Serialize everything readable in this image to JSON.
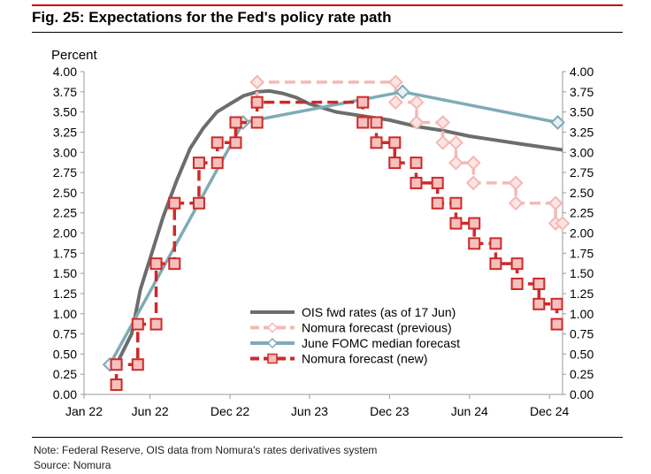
{
  "title": "Fig. 25: Expectations for the Fed's policy rate path",
  "note": "Note: Federal Reserve, OIS data from Nomura's rates derivatives system",
  "source": "Source: Nomura",
  "chart_data": {
    "type": "line",
    "ylabel": "Percent",
    "ylim": [
      0,
      4
    ],
    "yticks": [
      "0.00",
      "0.25",
      "0.50",
      "0.75",
      "1.00",
      "1.25",
      "1.50",
      "1.75",
      "2.00",
      "2.25",
      "2.50",
      "2.75",
      "3.00",
      "3.25",
      "3.50",
      "3.75",
      "4.00"
    ],
    "xlim": [
      "2022-01-01",
      "2024-12-31"
    ],
    "xticks": [
      {
        "date": "2022-01-01",
        "label": "Jan 22"
      },
      {
        "date": "2022-06-01",
        "label": "Jun 22"
      },
      {
        "date": "2022-12-01",
        "label": "Dec 22"
      },
      {
        "date": "2023-06-01",
        "label": "Jun 23"
      },
      {
        "date": "2023-12-01",
        "label": "Dec 23"
      },
      {
        "date": "2024-06-01",
        "label": "Jun 24"
      },
      {
        "date": "2024-12-01",
        "label": "Dec 24"
      }
    ],
    "grid": false,
    "legend_position": "bottom-center",
    "series": [
      {
        "name": "OIS fwd rates (as of 17 Jun)",
        "style": "solid",
        "color": "#6d6d6d",
        "marker": "none",
        "points": [
          [
            "2022-03-16",
            0.37
          ],
          [
            "2022-04-20",
            0.75
          ],
          [
            "2022-05-10",
            1.3
          ],
          [
            "2022-06-05",
            1.75
          ],
          [
            "2022-07-01",
            2.2
          ],
          [
            "2022-08-01",
            2.65
          ],
          [
            "2022-09-01",
            3.05
          ],
          [
            "2022-10-01",
            3.3
          ],
          [
            "2022-11-01",
            3.5
          ],
          [
            "2022-12-01",
            3.6
          ],
          [
            "2023-01-01",
            3.7
          ],
          [
            "2023-02-01",
            3.75
          ],
          [
            "2023-03-01",
            3.76
          ],
          [
            "2023-04-01",
            3.73
          ],
          [
            "2023-05-01",
            3.68
          ],
          [
            "2023-06-01",
            3.6
          ],
          [
            "2023-08-01",
            3.5
          ],
          [
            "2023-10-01",
            3.45
          ],
          [
            "2023-12-01",
            3.4
          ],
          [
            "2024-02-01",
            3.32
          ],
          [
            "2024-04-01",
            3.27
          ],
          [
            "2024-06-01",
            3.2
          ],
          [
            "2024-08-01",
            3.15
          ],
          [
            "2024-10-01",
            3.1
          ],
          [
            "2024-12-31",
            3.03
          ]
        ]
      },
      {
        "name": "Nomura forecast (previous)",
        "style": "dashed",
        "color": "#f4b8b4",
        "marker": "diamond",
        "points": [
          [
            "2023-02-01",
            3.62
          ],
          [
            "2023-02-01",
            3.87
          ],
          [
            "2023-12-15",
            3.87
          ],
          [
            "2023-12-15",
            3.62
          ],
          [
            "2024-02-01",
            3.62
          ],
          [
            "2024-02-01",
            3.37
          ],
          [
            "2024-04-01",
            3.37
          ],
          [
            "2024-04-01",
            3.12
          ],
          [
            "2024-05-01",
            3.12
          ],
          [
            "2024-05-01",
            2.87
          ],
          [
            "2024-06-10",
            2.87
          ],
          [
            "2024-06-10",
            2.62
          ],
          [
            "2024-09-15",
            2.62
          ],
          [
            "2024-09-15",
            2.37
          ],
          [
            "2024-12-15",
            2.37
          ],
          [
            "2024-12-15",
            2.12
          ],
          [
            "2024-12-31",
            2.12
          ]
        ]
      },
      {
        "name": "June FOMC median forecast",
        "style": "solid",
        "color": "#7fabb6",
        "marker": "diamond",
        "points": [
          [
            "2022-03-01",
            0.37
          ],
          [
            "2022-12-31",
            3.37
          ],
          [
            "2023-12-31",
            3.75
          ],
          [
            "2024-12-20",
            3.37
          ]
        ]
      },
      {
        "name": "Nomura forecast (new)",
        "style": "dashed",
        "color": "#cc2a2a",
        "marker": "square",
        "points": [
          [
            "2022-03-16",
            0.12
          ],
          [
            "2022-03-16",
            0.37
          ],
          [
            "2022-05-04",
            0.37
          ],
          [
            "2022-05-04",
            0.87
          ],
          [
            "2022-06-15",
            0.87
          ],
          [
            "2022-06-15",
            1.62
          ],
          [
            "2022-07-27",
            1.62
          ],
          [
            "2022-07-27",
            2.37
          ],
          [
            "2022-09-21",
            2.37
          ],
          [
            "2022-09-21",
            2.87
          ],
          [
            "2022-11-02",
            2.87
          ],
          [
            "2022-11-02",
            3.12
          ],
          [
            "2022-12-14",
            3.12
          ],
          [
            "2022-12-14",
            3.37
          ],
          [
            "2023-02-01",
            3.37
          ],
          [
            "2023-02-01",
            3.62
          ],
          [
            "2023-10-01",
            3.62
          ],
          [
            "2023-10-01",
            3.37
          ],
          [
            "2023-11-01",
            3.37
          ],
          [
            "2023-11-01",
            3.12
          ],
          [
            "2023-12-13",
            3.12
          ],
          [
            "2023-12-13",
            2.87
          ],
          [
            "2024-01-31",
            2.87
          ],
          [
            "2024-01-31",
            2.62
          ],
          [
            "2024-03-20",
            2.62
          ],
          [
            "2024-03-20",
            2.37
          ],
          [
            "2024-05-01",
            2.37
          ],
          [
            "2024-05-01",
            2.12
          ],
          [
            "2024-06-12",
            2.12
          ],
          [
            "2024-06-12",
            1.87
          ],
          [
            "2024-07-31",
            1.87
          ],
          [
            "2024-07-31",
            1.62
          ],
          [
            "2024-09-18",
            1.62
          ],
          [
            "2024-09-18",
            1.37
          ],
          [
            "2024-11-07",
            1.37
          ],
          [
            "2024-11-07",
            1.12
          ],
          [
            "2024-12-18",
            1.12
          ],
          [
            "2024-12-18",
            0.87
          ]
        ]
      }
    ]
  }
}
